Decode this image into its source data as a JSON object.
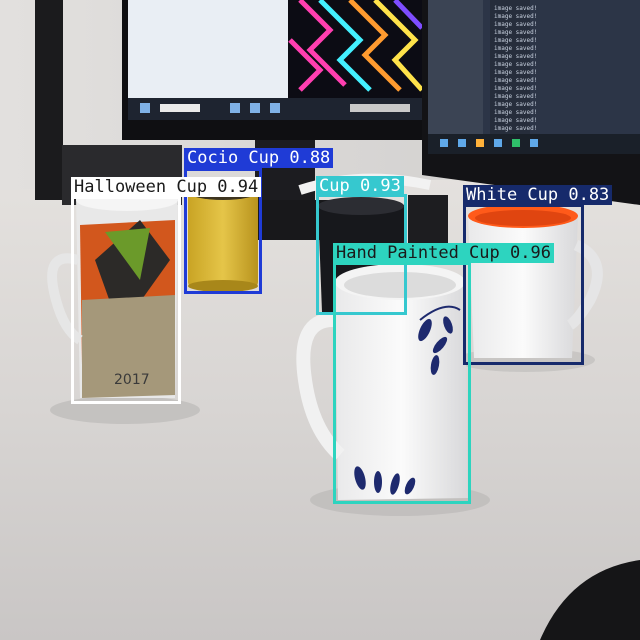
{
  "detections": [
    {
      "id": "cocio",
      "label": "Cocio Cup 0.88",
      "color": "#1f3bd6",
      "text_color": "#ffffff"
    },
    {
      "id": "halloween",
      "label": "Halloween Cup 0.94",
      "color": "#ffffff",
      "text_color": "#1a1a1a"
    },
    {
      "id": "cup",
      "label": "Cup 0.93",
      "color": "#36c8cf",
      "text_color": "#ffffff"
    },
    {
      "id": "white",
      "label": "White Cup 0.83",
      "color": "#162a6b",
      "text_color": "#ffffff"
    },
    {
      "id": "hand-painted",
      "label": "Hand Painted Cup 0.96",
      "color": "#2dd4bf",
      "text_color": "#1a1a1a"
    }
  ],
  "monitor_right_log_lines": [
    "image saved!",
    "image saved!",
    "image saved!",
    "image saved!",
    "image saved!",
    "image saved!",
    "image saved!",
    "image saved!",
    "image saved!",
    "image saved!",
    "image saved!",
    "image saved!",
    "image saved!",
    "image saved!",
    "image saved!",
    "image saved!"
  ],
  "calendar_mug_year": "2017"
}
